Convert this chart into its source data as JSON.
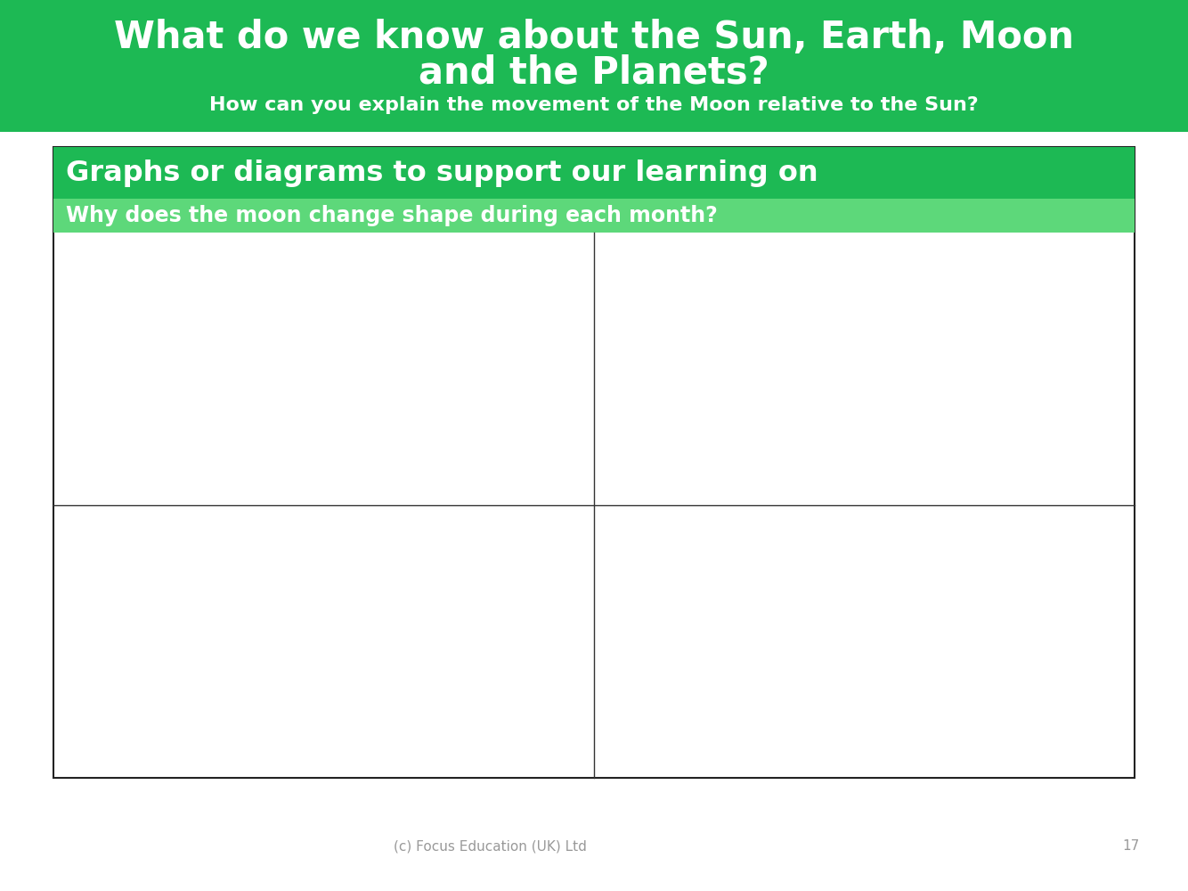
{
  "title_line1": "What do we know about the Sun, Earth, Moon",
  "title_line2": "and the Planets?",
  "subtitle": "How can you explain the movement of the Moon relative to the Sun?",
  "header_text_color": "#FFFFFF",
  "box_title": "Graphs or diagrams to support our learning on",
  "box_title_bg": "#1DB954",
  "box_subtitle": "Why does the moon change shape during each month?",
  "box_subtitle_bg": "#5DD87A",
  "box_border_color": "#222222",
  "grid_line_color": "#333333",
  "footer_text": "(c) Focus Education (UK) Ltd",
  "footer_page": "17",
  "footer_color": "#999999",
  "bg_color": "#FFFFFF",
  "header_green": "#1DB954"
}
